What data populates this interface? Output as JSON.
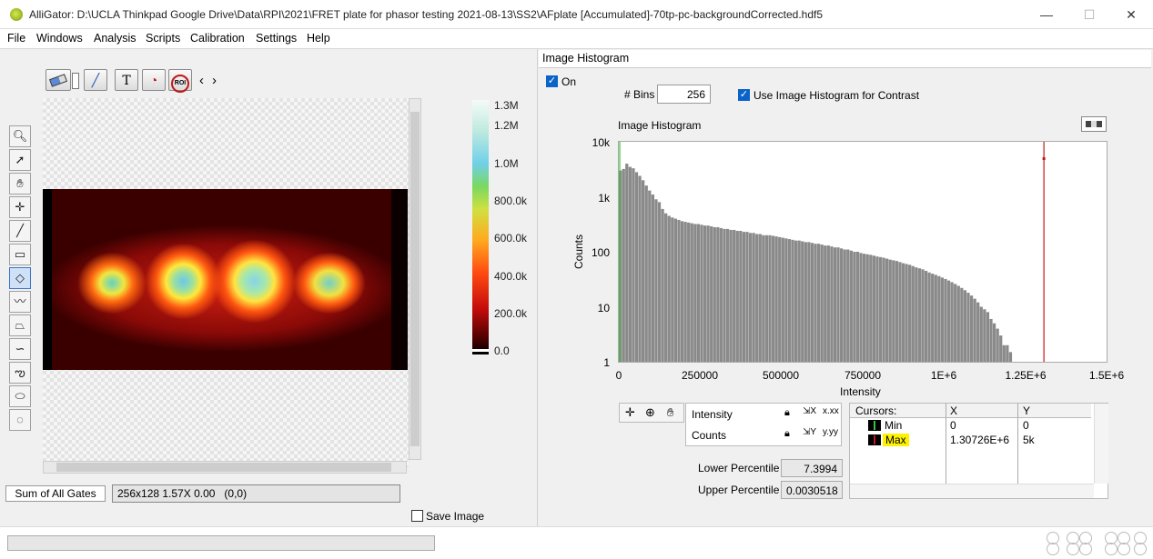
{
  "window": {
    "title": "AlliGator: D:\\UCLA Thinkpad Google Drive\\Data\\RPI\\2021\\FRET plate for phasor testing 2021-08-13\\SS2\\AFplate [Accumulated]-70tp-pc-backgroundCorrected.hdf5",
    "minimize": "—",
    "maximize": "☐",
    "close": "✕"
  },
  "menu": [
    "File",
    "Windows",
    "Analysis",
    "Scripts",
    "Calibration",
    "Settings",
    "Help"
  ],
  "top_tools": {
    "roi_label": "ROI",
    "prev": "‹",
    "next": "›"
  },
  "colorbar": {
    "labels": [
      "1.3M",
      "1.2M",
      "1.0M",
      "800.0k",
      "600.0k",
      "400.0k",
      "200.0k",
      "0.0"
    ]
  },
  "left": {
    "gates_tab": "Sum of All Gates",
    "status": "256x128 1.57X 0.00   (0,0)",
    "save_image": "Save Image"
  },
  "hist": {
    "panel_title": "Image Histogram",
    "on_label": "On",
    "bins_label": "# Bins",
    "bins_value": "256",
    "contrast_label": "Use Image Histogram for Contrast",
    "plot_title": "Image Histogram",
    "ylabel": "Counts",
    "xlabel": "Intensity",
    "yticks": [
      "10k",
      "1k",
      "100",
      "10",
      "1"
    ],
    "xticks": [
      "0",
      "250000",
      "500000",
      "750000",
      "1E+6",
      "1.25E+6",
      "1.5E+6"
    ],
    "axes_rows": [
      {
        "label": "Intensity"
      },
      {
        "label": "Counts"
      }
    ],
    "cursors": {
      "header": [
        "Cursors:",
        "X",
        "Y"
      ],
      "rows": [
        {
          "name": "Min",
          "x": "0",
          "y": "0"
        },
        {
          "name": "Max",
          "x": "1.30726E+6",
          "y": "5k"
        }
      ]
    },
    "lower_label": "Lower Percentile",
    "lower_value": "7.3994",
    "upper_label": "Upper Percentile",
    "upper_value": "0.0030518"
  },
  "chart_data": {
    "type": "bar",
    "title": "Image Histogram",
    "xlabel": "Intensity",
    "ylabel": "Counts",
    "xlim": [
      0,
      1500000
    ],
    "ylim": [
      1,
      10000
    ],
    "yscale": "log",
    "bin_width": 10000,
    "values": [
      3000,
      3200,
      4000,
      3500,
      3300,
      2800,
      2400,
      2000,
      1600,
      1300,
      1100,
      900,
      800,
      600,
      500,
      450,
      420,
      400,
      380,
      360,
      350,
      340,
      330,
      320,
      320,
      310,
      300,
      300,
      290,
      280,
      280,
      270,
      260,
      260,
      250,
      250,
      240,
      240,
      230,
      230,
      220,
      220,
      210,
      210,
      200,
      200,
      200,
      195,
      190,
      185,
      180,
      175,
      170,
      165,
      160,
      160,
      155,
      150,
      150,
      145,
      140,
      140,
      135,
      130,
      130,
      125,
      120,
      120,
      115,
      110,
      110,
      105,
      100,
      100,
      95,
      92,
      90,
      88,
      85,
      82,
      80,
      78,
      75,
      72,
      70,
      68,
      65,
      62,
      60,
      58,
      55,
      52,
      50,
      48,
      45,
      42,
      40,
      38,
      36,
      34,
      32,
      30,
      28,
      26,
      24,
      22,
      20,
      18,
      16,
      14,
      12,
      10,
      9,
      8,
      6,
      5,
      4,
      3,
      2,
      2,
      1.5,
      1,
      1,
      1,
      1,
      1,
      1,
      1,
      1,
      1,
      1
    ],
    "cursors": [
      {
        "name": "Min",
        "x": 0,
        "color": "#3cc03c"
      },
      {
        "name": "Max",
        "x": 1307260,
        "color": "#c01818"
      }
    ],
    "bar_color": "#8a8a8a"
  }
}
